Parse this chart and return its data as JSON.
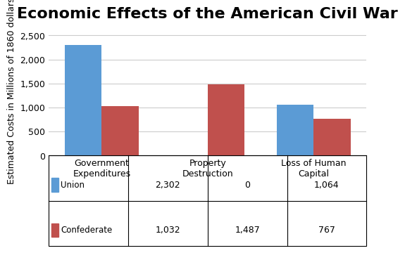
{
  "title": "Economic Effects of the American Civil War",
  "ylabel": "Estimated Costs in Millions of 1860 dollars",
  "categories": [
    "Government\nExpenditures",
    "Property\nDestruction",
    "Loss of Human\nCapital"
  ],
  "union_values": [
    2302,
    0,
    1064
  ],
  "confederate_values": [
    1032,
    1487,
    767
  ],
  "union_color": "#5B9BD5",
  "confederate_color": "#C0504D",
  "ylim": [
    0,
    2700
  ],
  "yticks": [
    0,
    500,
    1000,
    1500,
    2000,
    2500
  ],
  "bar_width": 0.35,
  "legend_labels": [
    "Union",
    "Confederate"
  ],
  "table_union": [
    "2,302",
    "0",
    "1,064"
  ],
  "table_confederate": [
    "1,032",
    "1,487",
    "767"
  ],
  "background_color": "#FFFFFF",
  "title_fontsize": 16,
  "tick_fontsize": 9,
  "ylabel_fontsize": 9
}
